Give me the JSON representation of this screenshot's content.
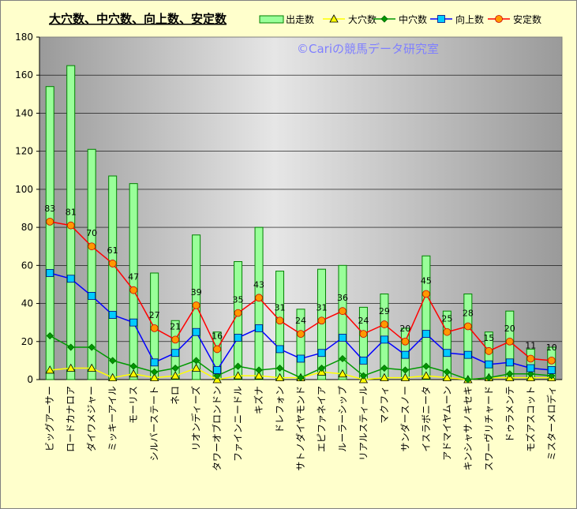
{
  "chart_data": {
    "type": "bar",
    "title": "大穴数、中穴数、向上数、安定数",
    "watermark": "©Cariの競馬データ研究室",
    "ylim": [
      0,
      180
    ],
    "yticks": [
      0,
      20,
      40,
      60,
      80,
      100,
      120,
      140,
      160,
      180
    ],
    "grid": true,
    "legend_position": "top-right",
    "categories": [
      "ビッグアーサー",
      "ロードカナロア",
      "ダイワメジャー",
      "ミッキーアイル",
      "モーリス",
      "シルバーステート",
      "ネロ",
      "リオンディーズ",
      "タワーオブロンドン",
      "ファインニードル",
      "キズナ",
      "ドレフォン",
      "サトノダイヤモンド",
      "エピファネイア",
      "ルーラーシップ",
      "リアルスティール",
      "マクフィ",
      "サンダースノー",
      "イスラボニータ",
      "アドマイヤムーン",
      "キンシャサノキセキ",
      "スワーヴリチャード",
      "ドゥラメンテ",
      "モズアスコット",
      "ミスターメロディ"
    ],
    "series": [
      {
        "name": "出走数",
        "type": "bar",
        "color": "#99ff99",
        "edge": "#008000",
        "values": [
          154,
          165,
          121,
          107,
          103,
          56,
          31,
          76,
          25,
          62,
          80,
          57,
          37,
          58,
          60,
          38,
          45,
          27,
          65,
          36,
          45,
          25,
          36,
          16,
          17
        ]
      },
      {
        "name": "大穴数",
        "type": "line",
        "color": "#ffff00",
        "marker": "triangle",
        "values": [
          5,
          6,
          6,
          1,
          3,
          1,
          2,
          6,
          0,
          2,
          2,
          1,
          1,
          4,
          3,
          0,
          1,
          1,
          2,
          1,
          0,
          1,
          1,
          1,
          1
        ]
      },
      {
        "name": "中穴数",
        "type": "line",
        "color": "#009900",
        "marker": "diamond",
        "values": [
          23,
          17,
          17,
          10,
          7,
          4,
          6,
          10,
          2,
          7,
          5,
          6,
          1,
          6,
          11,
          2,
          6,
          5,
          7,
          4,
          0,
          1,
          3,
          3,
          2
        ]
      },
      {
        "name": "向上数",
        "type": "line",
        "color": "#0000ff",
        "marker": "square",
        "values": [
          56,
          53,
          44,
          34,
          30,
          9,
          14,
          25,
          5,
          22,
          27,
          16,
          11,
          14,
          22,
          10,
          21,
          13,
          24,
          14,
          13,
          8,
          9,
          6,
          5
        ]
      },
      {
        "name": "安定数",
        "type": "line",
        "color": "#ff0000",
        "marker": "circle",
        "values": [
          83,
          81,
          70,
          61,
          47,
          27,
          21,
          39,
          16,
          35,
          43,
          31,
          24,
          31,
          36,
          24,
          29,
          20,
          45,
          25,
          28,
          15,
          20,
          11,
          10
        ]
      }
    ],
    "data_labels_series": "安定数"
  }
}
